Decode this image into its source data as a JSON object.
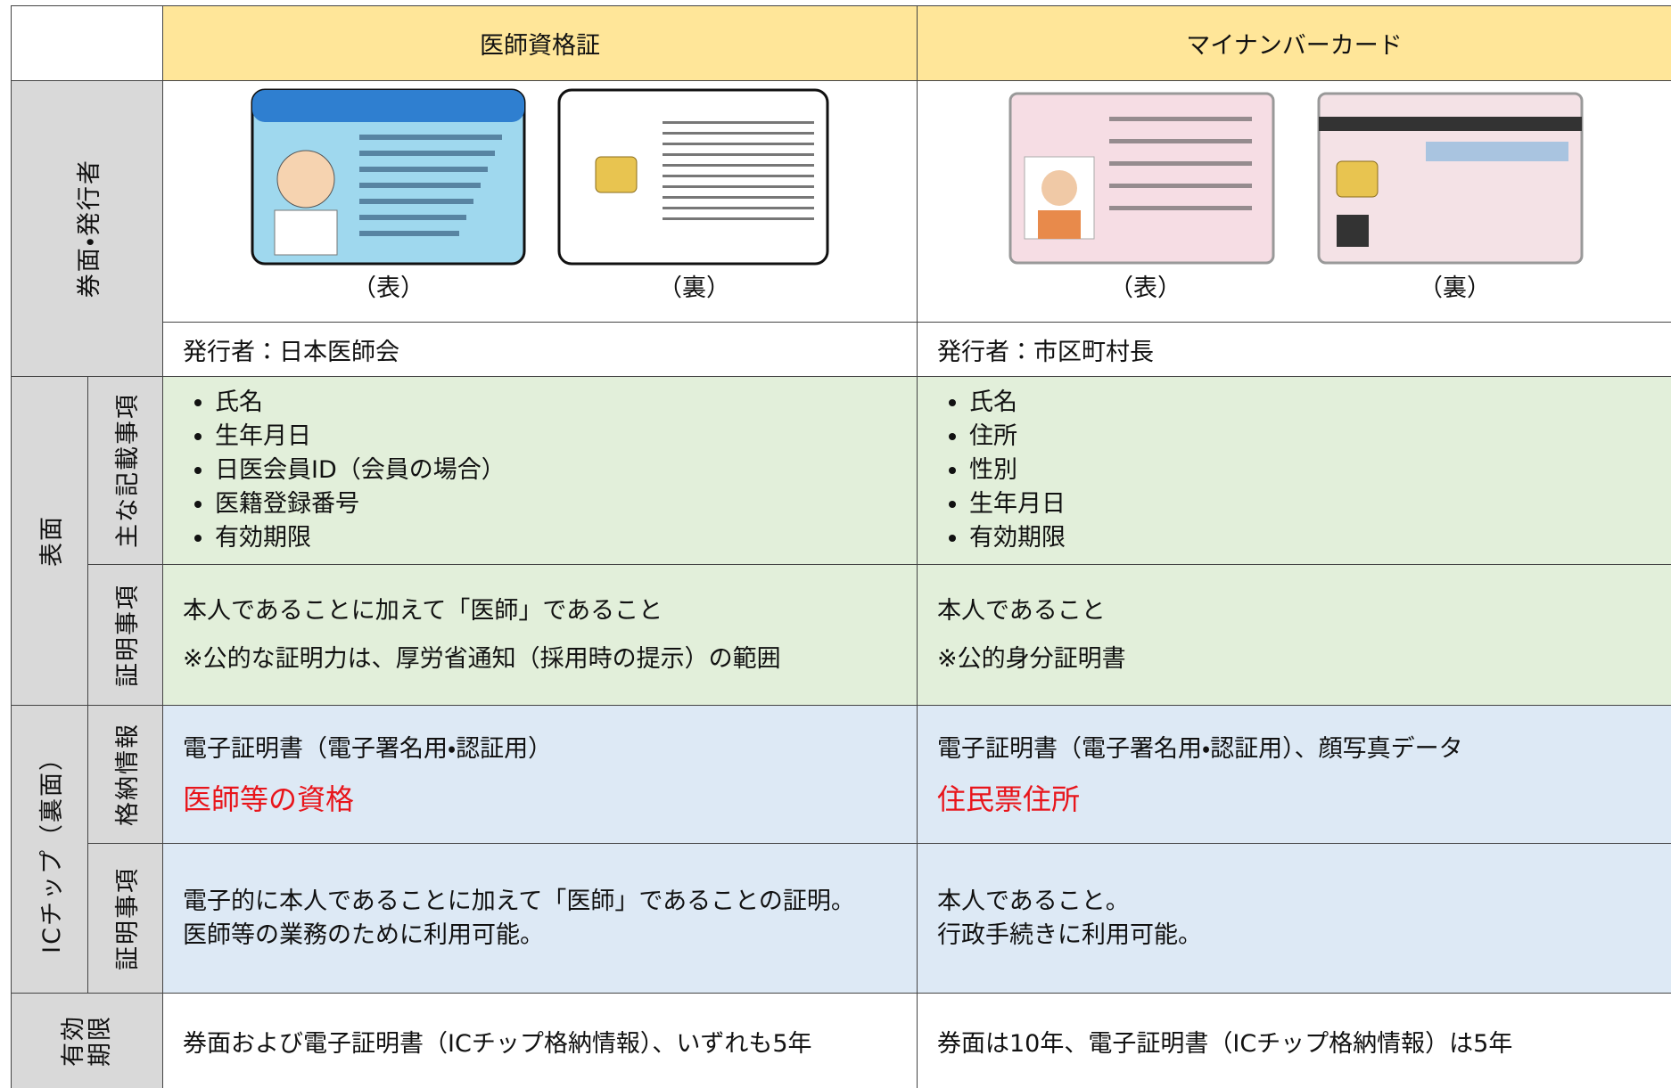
{
  "header": {
    "columns": [
      "医師資格証",
      "マイナンバーカード"
    ]
  },
  "card_row": {
    "label": "券面・発行者",
    "cards": [
      {
        "front_caption": "（表）",
        "back_caption": "（裏）"
      },
      {
        "front_caption": "（表）",
        "back_caption": "（裏）"
      }
    ],
    "issuers": [
      "発行者：日本医師会",
      "発行者：市区町村長"
    ]
  },
  "front_section": {
    "label": "表面",
    "items": {
      "label": "主な記載事項",
      "cells": [
        [
          "氏名",
          "生年月日",
          "日医会員ID（会員の場合）",
          "医籍登録番号",
          "有効期限"
        ],
        [
          "氏名",
          "住所",
          "性別",
          "生年月日",
          "有効期限"
        ]
      ]
    },
    "proof": {
      "label": "証明事項",
      "cells": [
        [
          "本人であることに加えて「医師」であること",
          "※公的な証明力は、厚労省通知（採用時の提示）の範囲"
        ],
        [
          "本人であること",
          "※公的身分証明書"
        ]
      ]
    }
  },
  "ic_section": {
    "label": "ICチップ（裏面）",
    "stored": {
      "label": "格納情報",
      "cells": [
        {
          "text": "電子証明書（電子署名用・認証用）",
          "highlight": "医師等の資格"
        },
        {
          "text": "電子証明書（電子署名用・認証用）、顔写真データ",
          "highlight": "住民票住所"
        }
      ]
    },
    "proof": {
      "label": "証明事項",
      "cells": [
        [
          "電子的に本人であることに加えて「医師」であることの証明。",
          "医師等の業務のために利用可能。"
        ],
        [
          "本人であること。",
          "行政手続きに利用可能。"
        ]
      ]
    }
  },
  "validity": {
    "label_lines": [
      "有効",
      "期限"
    ],
    "cells": [
      "券面および電子証明書（ICチップ格納情報）、いずれも5年",
      "券面は10年、電子証明書（ICチップ格納情報）は5年"
    ]
  }
}
